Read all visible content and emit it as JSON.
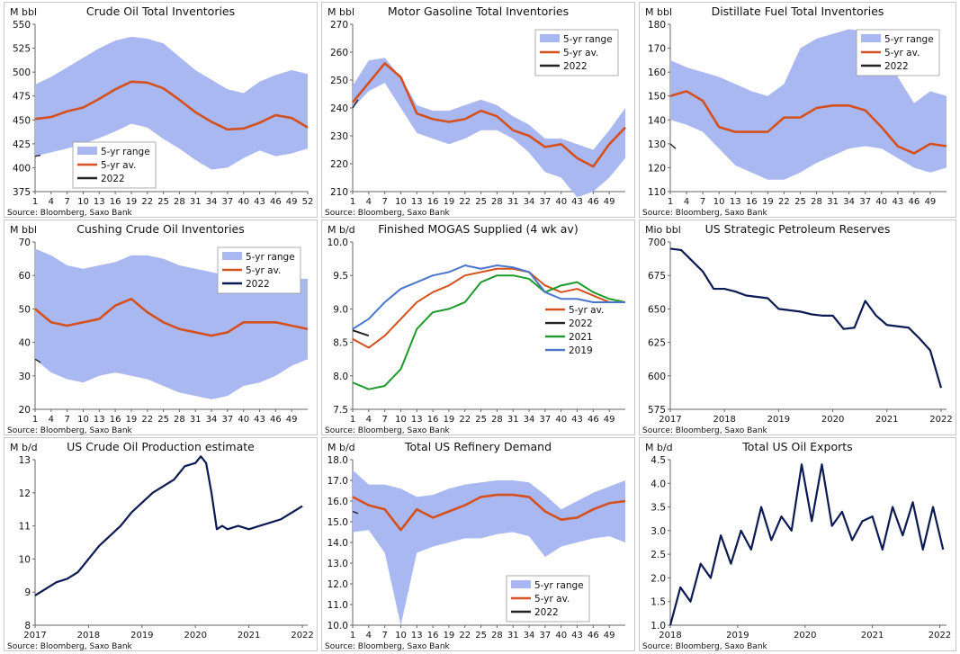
{
  "source": "Source: Bloomberg, Saxo Bank",
  "colors": {
    "range": "#aab8f2",
    "avg": "#d4511f",
    "cur": "#222222",
    "navy": "#0b1a52",
    "green": "#1e9a2c",
    "blue": "#4a76cc"
  },
  "panels": [
    {
      "title": "Crude Oil Total Inventories",
      "unit": "M bbl"
    },
    {
      "title": "Motor Gasoline Total Inventories",
      "unit": "M bbl"
    },
    {
      "title": "Distillate Fuel Total Inventories",
      "unit": "M bbl"
    },
    {
      "title": "Cushing Crude Oil Inventories",
      "unit": "M bbl"
    },
    {
      "title": "Finished MOGAS Supplied (4 wk av)",
      "unit": "M b/d"
    },
    {
      "title": "US Strategic Petroleum Reserves",
      "unit": "Mio bbl"
    },
    {
      "title": "US Crude Oil Production estimate",
      "unit": "M b/d"
    },
    {
      "title": "Total US Refinery Demand",
      "unit": "M b/d"
    },
    {
      "title": "Total US Oil Exports",
      "unit": "M b/d"
    }
  ],
  "chart_data": [
    {
      "type": "area",
      "title": "Crude Oil Total Inventories",
      "ylabel": "M bbl",
      "ylim": [
        375,
        550
      ],
      "yticks": [
        375,
        400,
        425,
        450,
        475,
        500,
        525,
        550
      ],
      "xlim": [
        1,
        52
      ],
      "xticks": [
        1,
        4,
        7,
        10,
        13,
        16,
        19,
        22,
        25,
        28,
        31,
        34,
        37,
        40,
        43,
        46,
        49,
        52
      ],
      "legend": {
        "position": "bottom-left",
        "entries": [
          "5-yr range",
          "5-yr av.",
          "2022"
        ]
      },
      "range_x": [
        1,
        4,
        7,
        10,
        13,
        16,
        19,
        22,
        25,
        28,
        31,
        34,
        37,
        40,
        43,
        46,
        49,
        52
      ],
      "range_low": [
        412,
        416,
        420,
        425,
        431,
        438,
        446,
        442,
        430,
        420,
        408,
        398,
        400,
        410,
        418,
        412,
        415,
        420
      ],
      "range_high": [
        487,
        495,
        505,
        515,
        525,
        533,
        537,
        535,
        530,
        516,
        502,
        492,
        482,
        478,
        490,
        497,
        502,
        498
      ],
      "avg_x": [
        1,
        4,
        7,
        10,
        13,
        16,
        19,
        22,
        25,
        28,
        31,
        34,
        37,
        40,
        43,
        46,
        49,
        52
      ],
      "avg": [
        451,
        453,
        459,
        463,
        472,
        482,
        490,
        489,
        483,
        471,
        458,
        448,
        440,
        441,
        447,
        455,
        452,
        442
      ],
      "cur_x": [
        1,
        2
      ],
      "cur": [
        412,
        413
      ]
    },
    {
      "type": "area",
      "title": "Motor Gasoline Total Inventories",
      "ylabel": "M bbl",
      "ylim": [
        210,
        270
      ],
      "yticks": [
        210,
        220,
        230,
        240,
        250,
        260,
        270
      ],
      "xlim": [
        1,
        52
      ],
      "xticks": [
        1,
        4,
        7,
        10,
        13,
        16,
        19,
        22,
        25,
        28,
        31,
        34,
        37,
        40,
        43,
        46,
        49
      ],
      "legend": {
        "position": "top-right",
        "entries": [
          "5-yr range",
          "5-yr av.",
          "2022"
        ]
      },
      "range_x": [
        1,
        4,
        7,
        10,
        13,
        16,
        19,
        22,
        25,
        28,
        31,
        34,
        37,
        40,
        43,
        46,
        49,
        52
      ],
      "range_low": [
        240,
        246,
        249,
        240,
        231,
        229,
        227,
        229,
        232,
        232,
        229,
        224,
        217,
        215,
        208,
        210,
        215,
        222
      ],
      "range_high": [
        248,
        257,
        258,
        251,
        241,
        239,
        239,
        241,
        243,
        241,
        237,
        234,
        229,
        229,
        227,
        225,
        232,
        240
      ],
      "avg_x": [
        1,
        4,
        7,
        10,
        13,
        16,
        19,
        22,
        25,
        28,
        31,
        34,
        37,
        40,
        43,
        46,
        49,
        52
      ],
      "avg": [
        242,
        249,
        256,
        251,
        238,
        236,
        235,
        236,
        239,
        237,
        232,
        230,
        226,
        227,
        222,
        219,
        227,
        233
      ],
      "cur_x": [
        1,
        2
      ],
      "cur": [
        240,
        243
      ]
    },
    {
      "type": "area",
      "title": "Distillate Fuel Total Inventories",
      "ylabel": "M bbl",
      "ylim": [
        110,
        180
      ],
      "yticks": [
        110,
        120,
        130,
        140,
        150,
        160,
        170,
        180
      ],
      "xlim": [
        1,
        52
      ],
      "xticks": [
        1,
        4,
        7,
        10,
        13,
        16,
        19,
        22,
        25,
        28,
        31,
        34,
        37,
        40,
        43,
        46,
        49
      ],
      "legend": {
        "position": "top-right",
        "entries": [
          "5-yr range",
          "5-yr av.",
          "2022"
        ]
      },
      "range_x": [
        1,
        4,
        7,
        10,
        13,
        16,
        19,
        22,
        25,
        28,
        31,
        34,
        37,
        40,
        43,
        46,
        49,
        52
      ],
      "range_low": [
        140,
        138,
        135,
        128,
        121,
        118,
        115,
        115,
        118,
        122,
        125,
        128,
        129,
        128,
        124,
        120,
        118,
        120
      ],
      "range_high": [
        165,
        162,
        160,
        158,
        155,
        152,
        150,
        155,
        170,
        174,
        176,
        178,
        177,
        170,
        158,
        147,
        152,
        150
      ],
      "avg_x": [
        1,
        4,
        7,
        10,
        13,
        16,
        19,
        22,
        25,
        28,
        31,
        34,
        37,
        40,
        43,
        46,
        49,
        52
      ],
      "avg": [
        150,
        152,
        148,
        137,
        135,
        135,
        135,
        141,
        141,
        145,
        146,
        146,
        144,
        137,
        129,
        126,
        130,
        129
      ],
      "cur_x": [
        1,
        2
      ],
      "cur": [
        130,
        128
      ]
    },
    {
      "type": "area",
      "title": "Cushing Crude Oil Inventories",
      "ylabel": "M bbl",
      "ylim": [
        20,
        70
      ],
      "yticks": [
        20,
        30,
        40,
        50,
        60,
        70
      ],
      "xlim": [
        1,
        52
      ],
      "xticks": [
        1,
        4,
        7,
        10,
        13,
        16,
        19,
        22,
        25,
        28,
        31,
        34,
        37,
        40,
        43,
        46,
        49
      ],
      "legend": {
        "position": "top-right",
        "entries": [
          "5-yr range",
          "5-yr av.",
          "2022"
        ]
      },
      "range_x": [
        1,
        4,
        7,
        10,
        13,
        16,
        19,
        22,
        25,
        28,
        31,
        34,
        37,
        40,
        43,
        46,
        49,
        52
      ],
      "range_low": [
        35,
        31,
        29,
        28,
        30,
        31,
        30,
        29,
        27,
        25,
        24,
        23,
        24,
        27,
        28,
        30,
        33,
        35
      ],
      "range_high": [
        68,
        66,
        63,
        62,
        63,
        64,
        66,
        66,
        65,
        63,
        62,
        61,
        60,
        60,
        60,
        60,
        59,
        59
      ],
      "avg_x": [
        1,
        4,
        7,
        10,
        13,
        16,
        19,
        22,
        25,
        28,
        31,
        34,
        37,
        40,
        43,
        46,
        49,
        52
      ],
      "avg": [
        50,
        46,
        45,
        46,
        47,
        51,
        53,
        49,
        46,
        44,
        43,
        42,
        43,
        46,
        46,
        46,
        45,
        44
      ],
      "cur_x": [
        1,
        2
      ],
      "cur": [
        35,
        34
      ]
    },
    {
      "type": "line",
      "title": "Finished MOGAS Supplied (4 wk av)",
      "ylabel": "M b/d",
      "ylim": [
        7.5,
        10.0
      ],
      "yticks": [
        "7.5",
        "8.0",
        "8.5",
        "9.0",
        "9.5",
        "10.0"
      ],
      "xlim": [
        1,
        52
      ],
      "xticks": [
        1,
        4,
        7,
        10,
        13,
        16,
        19,
        22,
        25,
        28,
        31,
        34,
        37,
        40,
        43,
        46,
        49
      ],
      "legend": {
        "position": "right",
        "entries": [
          "5-yr av.",
          "2022",
          "2021",
          "2019"
        ]
      },
      "x": [
        1,
        4,
        7,
        10,
        13,
        16,
        19,
        22,
        25,
        28,
        31,
        34,
        37,
        40,
        43,
        46,
        49,
        52
      ],
      "series": [
        {
          "name": "5-yr av.",
          "color": "#d4511f",
          "values": [
            8.55,
            8.42,
            8.6,
            8.85,
            9.1,
            9.25,
            9.35,
            9.5,
            9.55,
            9.6,
            9.6,
            9.55,
            9.35,
            9.25,
            9.3,
            9.2,
            9.1,
            9.1
          ]
        },
        {
          "name": "2022",
          "color": "#222222",
          "values": [
            8.68,
            8.6,
            null,
            null,
            null,
            null,
            null,
            null,
            null,
            null,
            null,
            null,
            null,
            null,
            null,
            null,
            null,
            null
          ]
        },
        {
          "name": "2021",
          "color": "#1e9a2c",
          "values": [
            7.9,
            7.8,
            7.85,
            8.1,
            8.7,
            8.95,
            9.0,
            9.1,
            9.4,
            9.5,
            9.5,
            9.45,
            9.25,
            9.35,
            9.4,
            9.25,
            9.15,
            9.1
          ]
        },
        {
          "name": "2019",
          "color": "#4a76cc",
          "values": [
            8.7,
            8.85,
            9.1,
            9.3,
            9.4,
            9.5,
            9.55,
            9.65,
            9.6,
            9.65,
            9.62,
            9.55,
            9.25,
            9.15,
            9.15,
            9.1,
            9.1,
            9.1
          ]
        }
      ]
    },
    {
      "type": "line",
      "title": "US Strategic Petroleum Reserves",
      "ylabel": "Mio bbl",
      "ylim": [
        575,
        700
      ],
      "yticks": [
        575,
        600,
        625,
        650,
        675,
        700
      ],
      "xlim": [
        2017,
        2022.1
      ],
      "xticks": [
        2017,
        2018,
        2019,
        2020,
        2021,
        2022
      ],
      "x": [
        2017.0,
        2017.2,
        2017.4,
        2017.6,
        2017.8,
        2018.0,
        2018.2,
        2018.4,
        2018.6,
        2018.8,
        2019.0,
        2019.2,
        2019.4,
        2019.6,
        2019.8,
        2020.0,
        2020.2,
        2020.4,
        2020.6,
        2020.8,
        2021.0,
        2021.2,
        2021.4,
        2021.6,
        2021.8,
        2022.0
      ],
      "series": [
        {
          "name": "",
          "color": "#0b1a52",
          "values": [
            695,
            694,
            686,
            678,
            665,
            665,
            663,
            660,
            659,
            658,
            650,
            649,
            648,
            646,
            645,
            645,
            635,
            636,
            656,
            645,
            638,
            637,
            636,
            628,
            619,
            591
          ]
        }
      ]
    },
    {
      "type": "line",
      "title": "US Crude Oil Production estimate",
      "ylabel": "M b/d",
      "ylim": [
        8,
        13
      ],
      "yticks": [
        8,
        9,
        10,
        11,
        12,
        13
      ],
      "xlim": [
        2017,
        2022.1
      ],
      "xticks": [
        2017,
        2018,
        2019,
        2020,
        2021,
        2022
      ],
      "x": [
        2017.0,
        2017.2,
        2017.4,
        2017.6,
        2017.8,
        2018.0,
        2018.2,
        2018.4,
        2018.6,
        2018.8,
        2019.0,
        2019.2,
        2019.4,
        2019.6,
        2019.8,
        2020.0,
        2020.1,
        2020.2,
        2020.3,
        2020.4,
        2020.5,
        2020.6,
        2020.8,
        2021.0,
        2021.2,
        2021.4,
        2021.6,
        2021.8,
        2022.0
      ],
      "series": [
        {
          "name": "",
          "color": "#0b1a52",
          "values": [
            8.9,
            9.1,
            9.3,
            9.4,
            9.6,
            10.0,
            10.4,
            10.7,
            11.0,
            11.4,
            11.7,
            12.0,
            12.2,
            12.4,
            12.8,
            12.9,
            13.1,
            12.9,
            12.0,
            10.9,
            11.0,
            10.9,
            11.0,
            10.9,
            11.0,
            11.1,
            11.2,
            11.4,
            11.6
          ]
        }
      ]
    },
    {
      "type": "area",
      "title": "Total US Refinery Demand",
      "ylabel": "M b/d",
      "ylim": [
        10.0,
        18.0
      ],
      "yticks": [
        "10.0",
        "11.0",
        "12.0",
        "13.0",
        "14.0",
        "15.0",
        "16.0",
        "17.0",
        "18.0"
      ],
      "xlim": [
        1,
        52
      ],
      "xticks": [
        1,
        4,
        7,
        10,
        13,
        16,
        19,
        22,
        25,
        28,
        31,
        34,
        37,
        40,
        43,
        46,
        49
      ],
      "legend": {
        "position": "bottom-right",
        "entries": [
          "5-yr range",
          "5-yr av.",
          "2022"
        ]
      },
      "range_x": [
        1,
        4,
        7,
        10,
        13,
        16,
        19,
        22,
        25,
        28,
        31,
        34,
        37,
        40,
        43,
        46,
        49,
        52
      ],
      "range_low": [
        14.5,
        14.6,
        13.5,
        10.0,
        13.5,
        13.8,
        14.0,
        14.2,
        14.2,
        14.4,
        14.5,
        14.3,
        13.3,
        13.8,
        14.0,
        14.2,
        14.3,
        14.0
      ],
      "range_high": [
        17.5,
        16.8,
        16.8,
        16.6,
        16.2,
        16.3,
        16.6,
        16.8,
        16.9,
        17.0,
        17.0,
        16.9,
        16.3,
        15.6,
        16.0,
        16.4,
        16.7,
        17.0
      ],
      "avg_x": [
        1,
        4,
        7,
        10,
        13,
        16,
        19,
        22,
        25,
        28,
        31,
        34,
        37,
        40,
        43,
        46,
        49,
        52
      ],
      "avg": [
        16.2,
        15.8,
        15.6,
        14.6,
        15.6,
        15.2,
        15.5,
        15.8,
        16.2,
        16.3,
        16.3,
        16.2,
        15.5,
        15.1,
        15.2,
        15.6,
        15.9,
        16.0
      ],
      "cur_x": [
        1,
        2
      ],
      "cur": [
        15.5,
        15.4
      ]
    },
    {
      "type": "line",
      "title": "Total US Oil Exports",
      "ylabel": "M b/d",
      "ylim": [
        1.0,
        4.5
      ],
      "yticks": [
        "1.0",
        "1.5",
        "2.0",
        "2.5",
        "3.0",
        "3.5",
        "4.0",
        "4.5"
      ],
      "xlim": [
        2018,
        2022.1
      ],
      "xticks": [
        2018,
        2019,
        2020,
        2021,
        2022
      ],
      "x": [
        2018.0,
        2018.15,
        2018.3,
        2018.45,
        2018.6,
        2018.75,
        2018.9,
        2019.05,
        2019.2,
        2019.35,
        2019.5,
        2019.65,
        2019.8,
        2019.95,
        2020.1,
        2020.25,
        2020.4,
        2020.55,
        2020.7,
        2020.85,
        2021.0,
        2021.15,
        2021.3,
        2021.45,
        2021.6,
        2021.75,
        2021.9,
        2022.05
      ],
      "series": [
        {
          "name": "",
          "color": "#0b1a52",
          "values": [
            1.0,
            1.8,
            1.5,
            2.3,
            2.0,
            2.9,
            2.3,
            3.0,
            2.6,
            3.5,
            2.8,
            3.3,
            3.0,
            4.4,
            3.2,
            4.4,
            3.1,
            3.4,
            2.8,
            3.2,
            3.3,
            2.6,
            3.5,
            2.9,
            3.6,
            2.6,
            3.5,
            2.6
          ]
        }
      ]
    }
  ]
}
